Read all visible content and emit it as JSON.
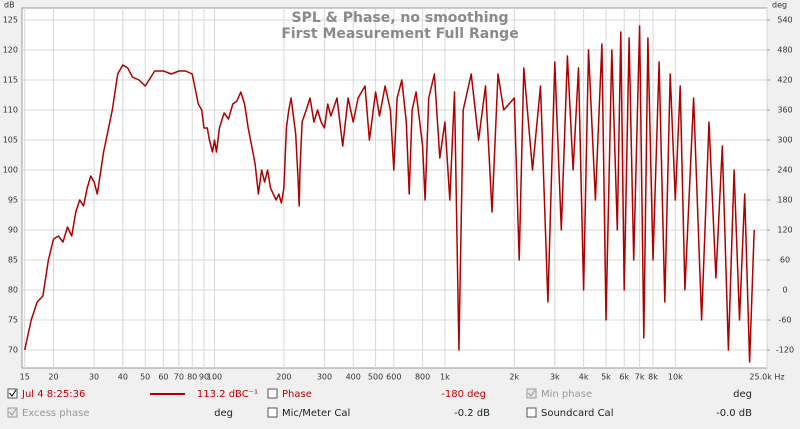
{
  "chart_data": {
    "type": "line",
    "title": "SPL & Phase, no smoothing",
    "subtitle": "First Measurement Full Range",
    "y_label": "dB",
    "y2_label": "deg",
    "log_x": true,
    "grid": true,
    "xlim": [
      14.6,
      25000
    ],
    "ylim": [
      67,
      127
    ],
    "y2lim": [
      -156,
      564
    ],
    "xticks": [
      15,
      20,
      30,
      40,
      50,
      60,
      70,
      80,
      90,
      100,
      200,
      300,
      400,
      500,
      600,
      800,
      {
        "value": 1000,
        "label": "1k"
      },
      {
        "value": 2000,
        "label": "2k"
      },
      {
        "value": 3000,
        "label": "3k"
      },
      {
        "value": 4000,
        "label": "4k"
      },
      {
        "value": 5000,
        "label": "5k"
      },
      {
        "value": 6000,
        "label": "6k"
      },
      {
        "value": 7000,
        "label": "7k"
      },
      {
        "value": 8000,
        "label": "8k"
      },
      {
        "value": 10000,
        "label": "10k"
      },
      {
        "value": 25000,
        "label": "25.0k Hz"
      }
    ],
    "yticks": [
      70,
      75,
      80,
      85,
      90,
      95,
      100,
      105,
      110,
      115,
      120,
      125
    ],
    "y2ticks": [
      -120,
      -60,
      0,
      60,
      120,
      180,
      240,
      300,
      360,
      420,
      480,
      540
    ],
    "x": [
      15,
      16,
      17,
      18,
      19,
      20,
      21,
      22,
      23,
      24,
      25,
      26,
      27,
      28,
      29,
      30,
      31,
      33,
      36,
      38,
      40,
      42,
      44,
      47,
      50,
      52,
      55,
      60,
      65,
      70,
      75,
      80,
      85,
      88,
      90,
      93,
      95,
      98,
      100,
      102,
      105,
      110,
      115,
      120,
      125,
      130,
      135,
      140,
      145,
      150,
      155,
      160,
      165,
      170,
      175,
      180,
      185,
      190,
      195,
      200,
      205,
      210,
      215,
      220,
      225,
      230,
      233,
      235,
      240,
      250,
      260,
      270,
      280,
      290,
      300,
      310,
      320,
      340,
      360,
      380,
      400,
      420,
      450,
      470,
      500,
      520,
      550,
      580,
      600,
      620,
      650,
      680,
      700,
      720,
      750,
      800,
      820,
      850,
      900,
      950,
      1000,
      1050,
      1100,
      1150,
      1200,
      1300,
      1400,
      1500,
      1600,
      1700,
      1800,
      2000,
      2100,
      2200,
      2400,
      2600,
      2800,
      3000,
      3200,
      3400,
      3600,
      3800,
      4000,
      4200,
      4500,
      4800,
      5000,
      5300,
      5600,
      5800,
      6000,
      6300,
      6600,
      7000,
      7300,
      7600,
      8000,
      8500,
      9000,
      9500,
      10000,
      10500,
      11000,
      12000,
      13000,
      14000,
      15000,
      16000,
      17000,
      18000,
      19000,
      20000,
      21000,
      22000
    ],
    "series": [
      {
        "name": "Jul 4 8:25:36",
        "color": "#b00000",
        "values": [
          70,
          75,
          78,
          79,
          85,
          88.5,
          89,
          88,
          90.5,
          89,
          93,
          95,
          94,
          97,
          99,
          98,
          96,
          103,
          110,
          116,
          117.5,
          117,
          115.5,
          115,
          114,
          115,
          116.5,
          116.5,
          116,
          116.5,
          116.5,
          116,
          111,
          110,
          107,
          107,
          105,
          103,
          105,
          103,
          107,
          109.5,
          108.5,
          111,
          111.5,
          113,
          111,
          107,
          104,
          101,
          96,
          100,
          98,
          100,
          97,
          96,
          95,
          96,
          94.5,
          97,
          107,
          110,
          112,
          109,
          106,
          99,
          94,
          100,
          108,
          110,
          112,
          108,
          110,
          108,
          107,
          111,
          109,
          112,
          104,
          112,
          108,
          112,
          114,
          105,
          113,
          109,
          114,
          110,
          100,
          112,
          115,
          108,
          96,
          110,
          113,
          104,
          95,
          112,
          116,
          102,
          108,
          95,
          113,
          70,
          110,
          116,
          105,
          114,
          93,
          116,
          110,
          112,
          85,
          117,
          100,
          114,
          78,
          118,
          90,
          119,
          100,
          117,
          80,
          120,
          95,
          121,
          75,
          120,
          90,
          123,
          80,
          122,
          85,
          124,
          72,
          122,
          85,
          118,
          78,
          116,
          95,
          114,
          80,
          112,
          75,
          108,
          82,
          104,
          70,
          100,
          75,
          96,
          68,
          90
        ]
      }
    ]
  },
  "panel": {
    "value": "113.2 dBC⁻¹",
    "phase": "Phase",
    "phase_value": "-180 deg",
    "min_phase": "Min phase",
    "min_phase_value": "deg",
    "excess_phase": "Excess phase",
    "excess_phase_value": "deg",
    "mic_cal": "Mic/Meter Cal",
    "mic_cal_value": "-0.2 dB",
    "soundcard_cal": "Soundcard Cal",
    "soundcard_cal_value": "-0.0 dB"
  }
}
